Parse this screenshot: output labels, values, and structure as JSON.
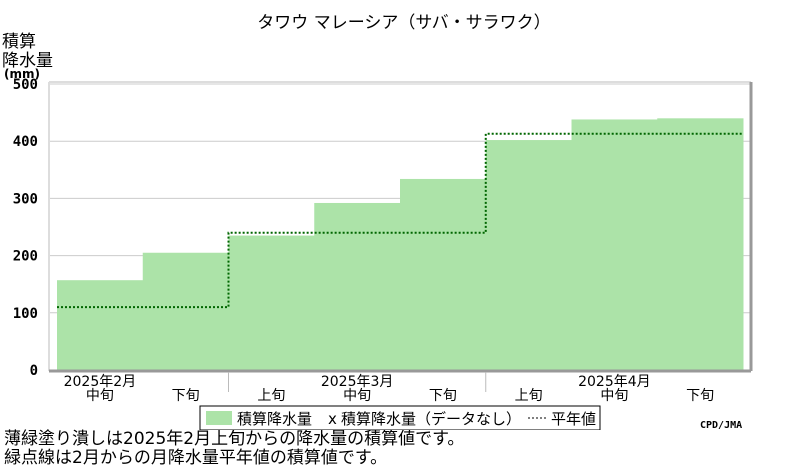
{
  "chart_data": {
    "type": "bar",
    "title": "タワウ マレーシア（サバ・サラワク）",
    "ylabel_lines": [
      "積算",
      "降水量"
    ],
    "yunit": "(mm)",
    "ylim": [
      0,
      500
    ],
    "yticks": [
      "0",
      "100",
      "200",
      "300",
      "400",
      "500"
    ],
    "dekads": [
      {
        "month": "2025年2月",
        "label": "中旬",
        "value": 157,
        "normal": 110
      },
      {
        "month": "2025年2月",
        "label": "下旬",
        "value": 205,
        "normal": 110
      },
      {
        "month": "2025年3月",
        "label": "上旬",
        "value": 235,
        "normal": 240
      },
      {
        "month": "2025年3月",
        "label": "中旬",
        "value": 292,
        "normal": 240
      },
      {
        "month": "2025年3月",
        "label": "下旬",
        "value": 334,
        "normal": 240
      },
      {
        "month": "2025年4月",
        "label": "上旬",
        "value": 402,
        "normal": 413
      },
      {
        "month": "2025年4月",
        "label": "中旬",
        "value": 438,
        "normal": 413
      },
      {
        "month": "2025年4月",
        "label": "下旬",
        "value": 440,
        "normal": 413
      }
    ],
    "month_labels": [
      {
        "text": "2025年2月",
        "at_index": 0.5
      },
      {
        "text": "2025年3月",
        "at_index": 3.5
      },
      {
        "text": "2025年4月",
        "at_index": 6.5
      }
    ],
    "month_boundaries": [
      2,
      5
    ],
    "legend": {
      "series1": "積算降水量",
      "mark_x": "x",
      "series2": "積算降水量（データなし）",
      "series3": "平年値"
    },
    "colors": {
      "bar": "#ace3a8",
      "normal_line": "#006600",
      "grid": "#cccccc",
      "frame": "#999999"
    },
    "credit": "CPD/JMA"
  },
  "notes": [
    "薄緑塗り潰しは2025年2月上旬からの降水量の積算値です。",
    "緑点線は2月からの月降水量平年値の積算値です。"
  ]
}
